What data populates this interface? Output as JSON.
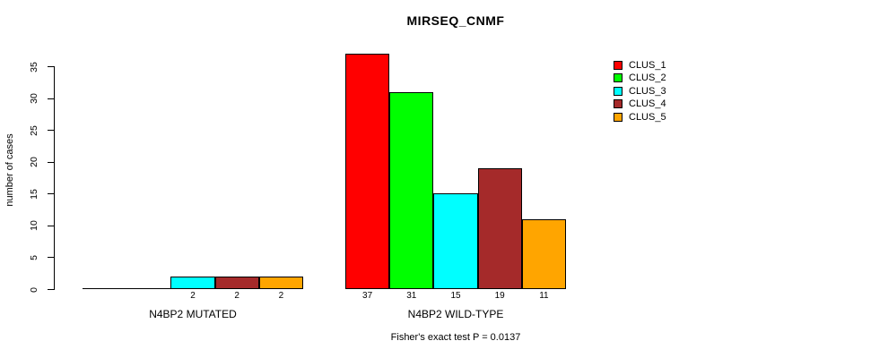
{
  "chart_data": {
    "type": "bar",
    "title": "MIRSEQ_CNMF",
    "ylabel": "number of cases",
    "xlabel": "",
    "footnote": "Fisher's exact test P = 0.0137",
    "categories": [
      "N4BP2 MUTATED",
      "N4BP2 WILD-TYPE"
    ],
    "series": [
      {
        "name": "CLUS_1",
        "color": "#FF0000",
        "values": [
          0,
          37
        ]
      },
      {
        "name": "CLUS_2",
        "color": "#00FF00",
        "values": [
          0,
          31
        ]
      },
      {
        "name": "CLUS_3",
        "color": "#00FFFF",
        "values": [
          2,
          15
        ]
      },
      {
        "name": "CLUS_4",
        "color": "#A52A2A",
        "values": [
          2,
          19
        ]
      },
      {
        "name": "CLUS_5",
        "color": "#FFA500",
        "values": [
          2,
          11
        ]
      }
    ],
    "yticks": [
      0,
      5,
      10,
      15,
      20,
      25,
      30,
      35
    ],
    "ylim": [
      0,
      37
    ],
    "grid": false,
    "legend_position": "right",
    "bar_value_labels": "shown below bars when value > 0"
  }
}
